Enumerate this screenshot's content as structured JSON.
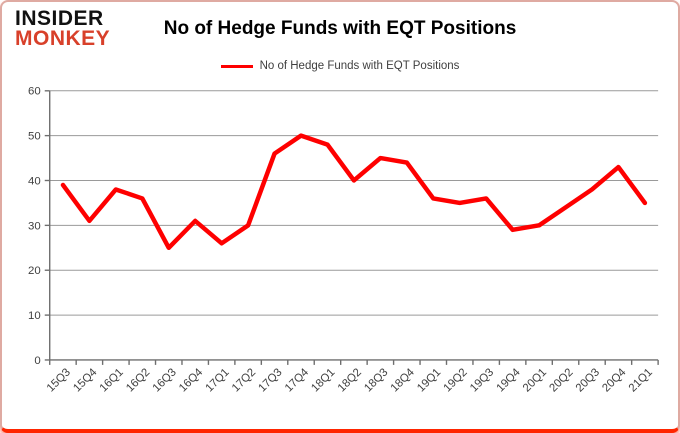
{
  "logo": {
    "line1": "INSIDER",
    "line2": "MONKEY",
    "color": "#d8402a"
  },
  "header": {
    "title": "No of Hedge Funds with EQT Positions"
  },
  "legend": {
    "label": "No of Hedge Funds with EQT Positions"
  },
  "chart_data": {
    "type": "line",
    "title": "No of Hedge Funds with EQT Positions",
    "categories": [
      "15Q3",
      "15Q4",
      "16Q1",
      "16Q2",
      "16Q3",
      "16Q4",
      "17Q1",
      "17Q2",
      "17Q3",
      "17Q4",
      "18Q1",
      "18Q2",
      "18Q3",
      "18Q4",
      "19Q1",
      "19Q2",
      "19Q3",
      "19Q4",
      "20Q1",
      "20Q2",
      "20Q3",
      "20Q4",
      "21Q1"
    ],
    "values": [
      39,
      31,
      38,
      36,
      25,
      31,
      26,
      30,
      46,
      50,
      48,
      40,
      45,
      44,
      36,
      35,
      36,
      29,
      30,
      34,
      38,
      43,
      35
    ],
    "xlabel": "",
    "ylabel": "",
    "ylim": [
      0,
      60
    ],
    "yticks": [
      0,
      10,
      20,
      30,
      40,
      50,
      60
    ],
    "grid": true,
    "legend_position": "top",
    "line_color": "#fe0000",
    "gridline_color": "#9a9a9a",
    "axis_color": "#6e6e6e",
    "axis_text_color": "#404040"
  }
}
